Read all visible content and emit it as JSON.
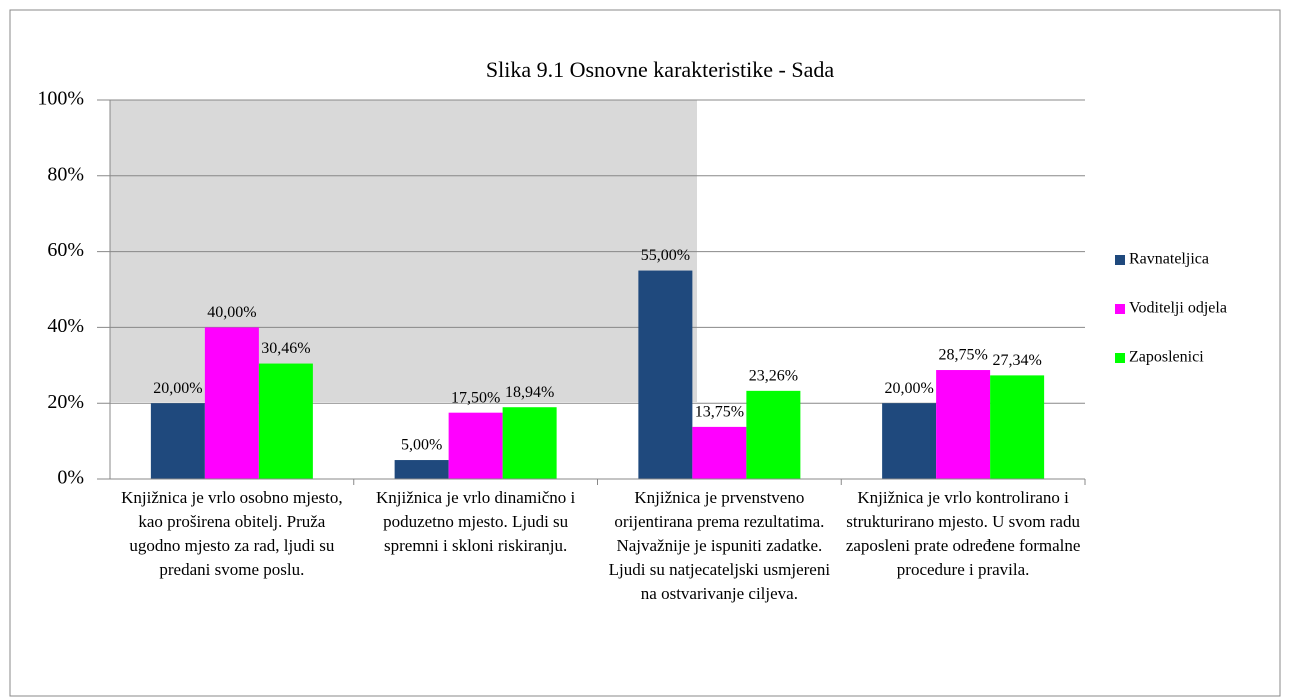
{
  "chart_data": {
    "type": "bar",
    "title": "Slika 9.1 Osnovne karakteristike - Sada",
    "categories": [
      "Knjižnica je vrlo osobno mjesto, kao proširena obitelj. Pruža ugodno mjesto za rad, ljudi su predani svome poslu.",
      "Knjižnica je vrlo dinamično i poduzetno mjesto. Ljudi su spremni i skloni riskiranju.",
      "Knjižnica je prvenstveno orijentirana prema rezultatima. Najvažnije je ispuniti zadatke. Ljudi su natjecateljski usmjereni na ostvarivanje ciljeva.",
      "Knjižnica je vrlo kontrolirano i strukturirano mjesto.  U svom radu zaposleni prate određene formalne procedure i pravila."
    ],
    "series": [
      {
        "name": "Ravnateljica",
        "color": "#1f497d",
        "values": [
          20,
          5,
          55,
          20
        ],
        "value_labels": [
          "20,00%",
          "5,00%",
          "55,00%",
          "20,00%"
        ]
      },
      {
        "name": "Voditelji odjela",
        "color": "#ff00ff",
        "values": [
          40,
          17.5,
          13.75,
          28.75
        ],
        "value_labels": [
          "40,00%",
          "17,50%",
          "13,75%",
          "28,75%"
        ]
      },
      {
        "name": "Zaposlenici",
        "color": "#00ff00",
        "values": [
          30.46,
          18.94,
          23.26,
          27.34
        ],
        "value_labels": [
          "30,46%",
          "18,94%",
          "23,26%",
          "27,34%"
        ]
      }
    ],
    "ylim": [
      0,
      100
    ],
    "yticks": [
      {
        "value": 0,
        "label": "0%"
      },
      {
        "value": 20,
        "label": "20%"
      },
      {
        "value": 40,
        "label": "40%"
      },
      {
        "value": 60,
        "label": "60%"
      },
      {
        "value": 80,
        "label": "80%"
      },
      {
        "value": 100,
        "label": "100%"
      }
    ],
    "grid": true,
    "legend": "right"
  }
}
